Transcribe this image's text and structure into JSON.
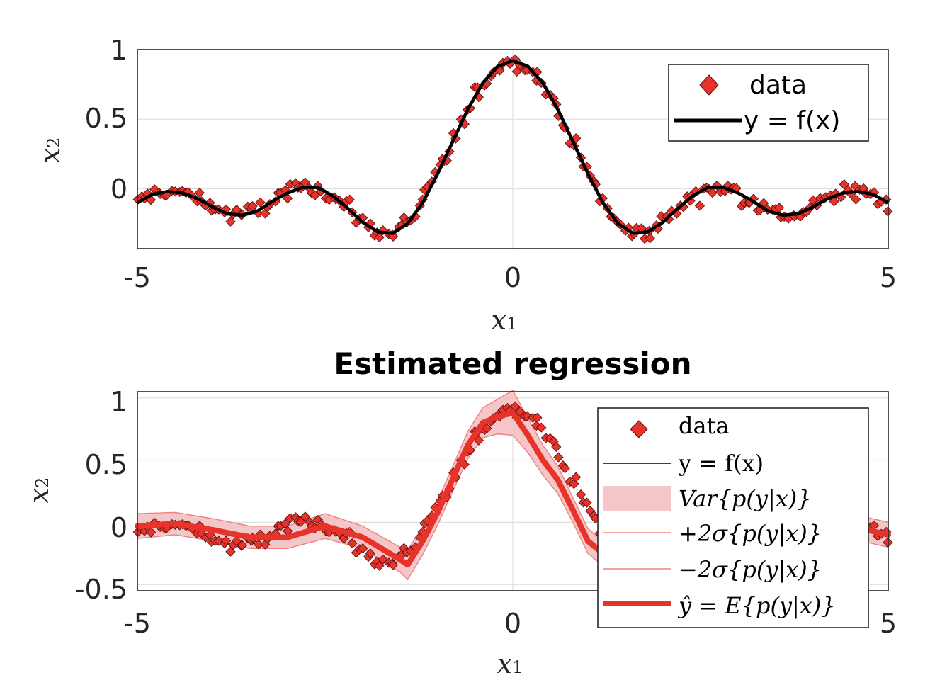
{
  "chart_data": [
    {
      "type": "scatter",
      "title": "",
      "xlabel": "x_1",
      "ylabel": "x_2",
      "xlim": [
        -5,
        5
      ],
      "ylim": [
        -0.43,
        1
      ],
      "xticks": [
        "-5",
        "0",
        "5"
      ],
      "yticks": [
        "0",
        "0.5",
        "1"
      ],
      "grid": true,
      "legend_position": "top-right",
      "series": [
        {
          "name": "data",
          "type": "scatter",
          "color": "#e8332a"
        },
        {
          "name": "y = f(x)",
          "type": "line",
          "color": "#000000",
          "x": [
            -5,
            -4.8,
            -4.6,
            -4.4,
            -4.2,
            -4,
            -3.8,
            -3.6,
            -3.4,
            -3.2,
            -3,
            -2.8,
            -2.6,
            -2.4,
            -2.2,
            -2,
            -1.8,
            -1.6,
            -1.4,
            -1.2,
            -1,
            -0.8,
            -0.6,
            -0.4,
            -0.2,
            0,
            0.2,
            0.4,
            0.6,
            0.8,
            1,
            1.2,
            1.4,
            1.6,
            1.8,
            2,
            2.2,
            2.4,
            2.6,
            2.8,
            3,
            3.2,
            3.4,
            3.6,
            3.8,
            4,
            4.2,
            4.4,
            4.6,
            4.8,
            5
          ],
          "y": [
            -0.1,
            -0.04,
            -0.02,
            -0.03,
            -0.07,
            -0.13,
            -0.18,
            -0.19,
            -0.16,
            -0.09,
            -0.03,
            0.01,
            0.01,
            -0.05,
            -0.14,
            -0.24,
            -0.31,
            -0.32,
            -0.25,
            -0.1,
            0.11,
            0.34,
            0.57,
            0.76,
            0.88,
            0.92,
            0.88,
            0.76,
            0.57,
            0.34,
            0.11,
            -0.1,
            -0.25,
            -0.32,
            -0.31,
            -0.24,
            -0.14,
            -0.05,
            0.01,
            0.01,
            -0.03,
            -0.09,
            -0.16,
            -0.19,
            -0.18,
            -0.13,
            -0.07,
            -0.03,
            -0.02,
            -0.04,
            -0.1
          ]
        }
      ]
    },
    {
      "type": "line",
      "title": "Estimated regression",
      "xlabel": "x_1",
      "ylabel": "x_2",
      "xlim": [
        -5,
        5
      ],
      "ylim": [
        -0.55,
        1.05
      ],
      "xticks": [
        "-5",
        "0",
        "5"
      ],
      "yticks": [
        "-0.5",
        "0",
        "0.5",
        "1"
      ],
      "grid": true,
      "legend_position": "top-right",
      "series": [
        {
          "name": "data",
          "type": "scatter",
          "color": "#e8332a"
        },
        {
          "name": "y = f(x)",
          "type": "line",
          "color": "#000000"
        },
        {
          "name": "Var{p(y|x)}",
          "type": "band",
          "color": "#f4c6c8"
        },
        {
          "name": "+2σ{p(y|x)}",
          "type": "line",
          "color": "#f08080"
        },
        {
          "name": "−2σ{p(y|x)}",
          "type": "line",
          "color": "#f08080"
        },
        {
          "name": "ŷ = E{p(y|x)}",
          "type": "line",
          "color": "#e8332a",
          "x": [
            -5,
            -4.5,
            -4,
            -3.5,
            -3,
            -2.5,
            -2,
            -1.5,
            -1.4,
            -1.2,
            -1,
            -0.8,
            -0.6,
            -0.4,
            -0.2,
            0,
            0.2,
            0.4,
            0.6,
            0.8,
            1,
            1.2,
            1.5,
            2,
            2.5,
            3,
            3.5,
            4,
            4.5,
            5
          ],
          "y": [
            -0.03,
            -0.01,
            -0.06,
            -0.12,
            -0.12,
            -0.03,
            -0.12,
            -0.3,
            -0.34,
            -0.15,
            0.08,
            0.35,
            0.62,
            0.8,
            0.85,
            0.88,
            0.7,
            0.5,
            0.34,
            0.1,
            -0.15,
            -0.25,
            -0.27,
            -0.15,
            -0.05,
            -0.08,
            -0.12,
            -0.08,
            -0.03,
            -0.1
          ],
          "sigma": [
            0.1,
            0.09,
            0.09,
            0.09,
            0.09,
            0.1,
            0.09,
            0.1,
            0.12,
            0.11,
            0.1,
            0.1,
            0.11,
            0.12,
            0.14,
            0.18,
            0.14,
            0.12,
            0.11,
            0.1,
            0.1,
            0.1,
            0.1,
            0.1,
            0.1,
            0.1,
            0.1,
            0.1,
            0.1,
            0.1
          ]
        }
      ]
    }
  ],
  "legend_top": {
    "items": [
      {
        "label": "data"
      },
      {
        "label": "y = f(x)"
      }
    ]
  },
  "legend_bottom": {
    "items": [
      {
        "label": "data"
      },
      {
        "label": "y = f(x)"
      },
      {
        "label": "Var{p(y|x)}"
      },
      {
        "label": "+2σ{p(y|x)}"
      },
      {
        "label": "−2σ{p(y|x)}"
      },
      {
        "label": "ŷ = E{p(y|x)}"
      }
    ]
  }
}
